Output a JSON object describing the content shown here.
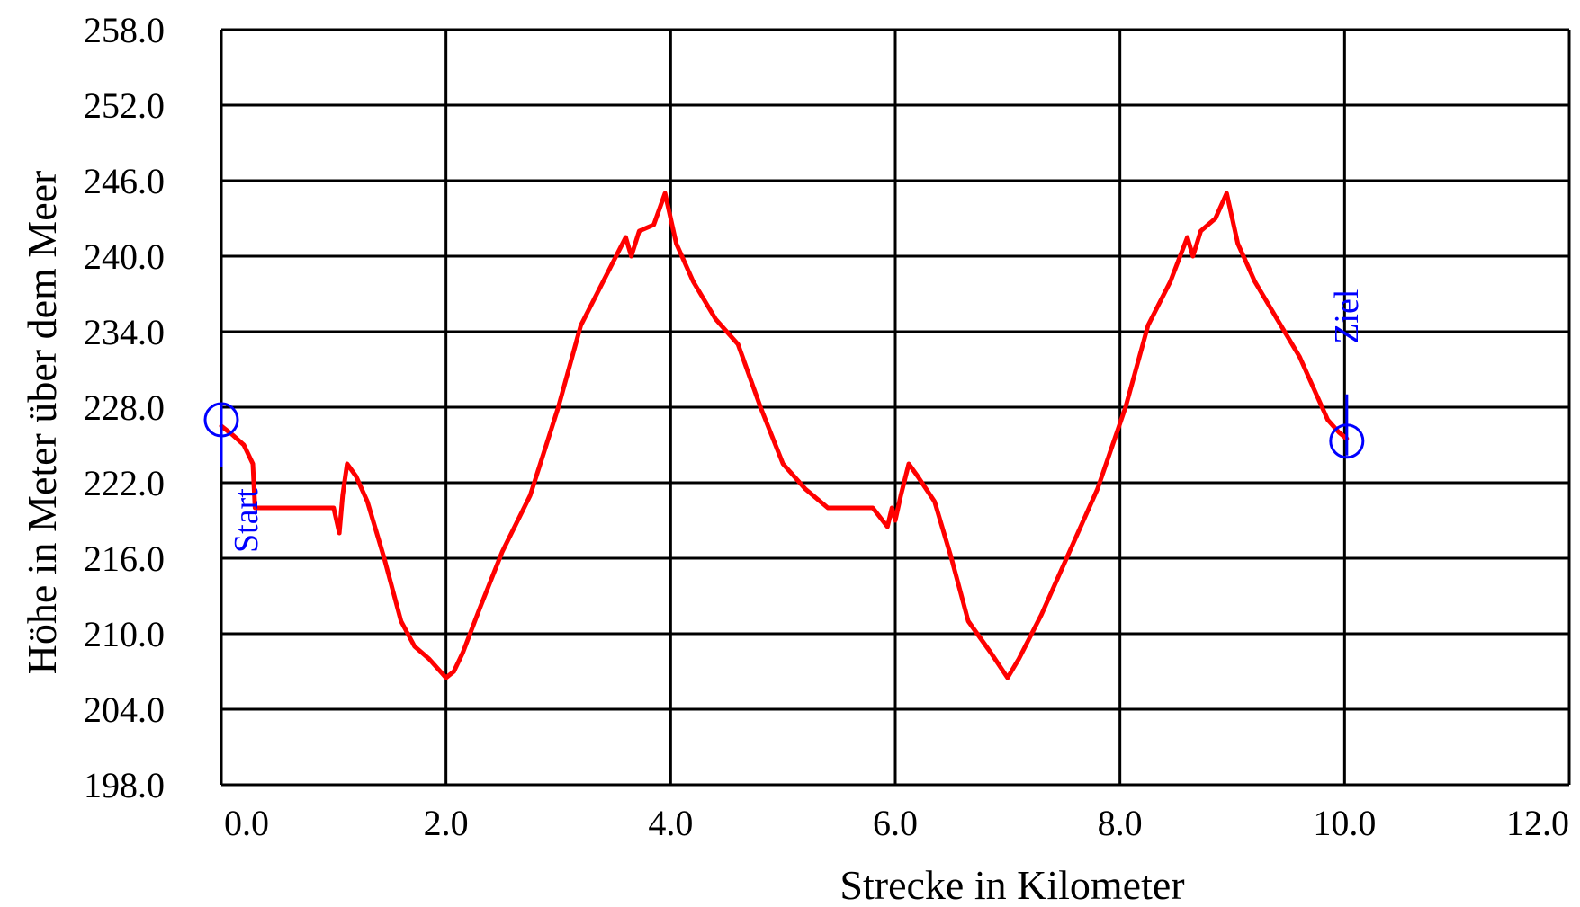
{
  "chart_data": {
    "type": "line",
    "title": "",
    "xlabel": "Strecke in Kilometer",
    "ylabel": "Höhe in Meter über dem Meer",
    "xlim": [
      0,
      12
    ],
    "ylim": [
      198,
      258
    ],
    "x_ticks": [
      "0.0",
      "2.0",
      "4.0",
      "6.0",
      "8.0",
      "10.0",
      "12.0"
    ],
    "y_ticks": [
      "198.0",
      "204.0",
      "210.0",
      "216.0",
      "222.0",
      "228.0",
      "234.0",
      "240.0",
      "246.0",
      "252.0",
      "258.0"
    ],
    "grid": true,
    "colors": {
      "line": "#ff0000",
      "markers": "#0000ff",
      "grid": "#000000"
    },
    "series": [
      {
        "x": [
          0.0,
          0.1,
          0.2,
          0.28,
          0.3,
          0.4,
          0.5,
          0.7,
          0.9,
          1.0,
          1.05,
          1.08,
          1.12,
          1.2,
          1.3,
          1.45,
          1.6,
          1.72,
          1.85,
          2.0,
          2.07,
          2.15,
          2.3,
          2.5,
          2.75,
          3.0,
          3.2,
          3.4,
          3.6,
          3.65,
          3.72,
          3.85,
          3.95,
          4.05,
          4.2,
          4.4,
          4.6,
          4.8,
          5.0,
          5.2,
          5.4,
          5.6,
          5.8,
          5.93,
          5.97,
          6.0,
          6.05,
          6.12,
          6.2,
          6.35,
          6.5,
          6.65,
          6.85,
          7.0,
          7.1,
          7.3,
          7.55,
          7.8,
          8.05,
          8.25,
          8.45,
          8.6,
          8.65,
          8.72,
          8.85,
          8.95,
          9.05,
          9.2,
          9.4,
          9.6,
          9.75,
          9.85,
          9.95,
          10.02
        ],
        "y": [
          226.5,
          225.8,
          225.0,
          223.5,
          220.0,
          220.0,
          220.0,
          220.0,
          220.0,
          220.0,
          218.0,
          221.0,
          223.5,
          222.5,
          220.5,
          216.0,
          211.0,
          209.0,
          208.0,
          206.5,
          207.0,
          208.5,
          212.0,
          216.5,
          221.0,
          228.0,
          234.5,
          238.0,
          241.5,
          240.0,
          242.0,
          242.5,
          245.0,
          241.0,
          238.0,
          235.0,
          233.0,
          228.0,
          223.5,
          221.5,
          220.0,
          220.0,
          220.0,
          218.5,
          220.0,
          219.0,
          221.0,
          223.5,
          222.5,
          220.5,
          216.0,
          211.0,
          208.5,
          206.5,
          208.0,
          211.5,
          216.5,
          221.5,
          228.0,
          234.5,
          238.0,
          241.5,
          240.0,
          242.0,
          243.0,
          245.0,
          241.0,
          238.0,
          235.0,
          232.0,
          229.0,
          227.0,
          226.0,
          225.5
        ]
      }
    ],
    "annotations": [
      {
        "label": "Start",
        "x": 0.0,
        "y": 227.0
      },
      {
        "label": "Ziel",
        "x": 10.02,
        "y": 225.3
      }
    ]
  }
}
